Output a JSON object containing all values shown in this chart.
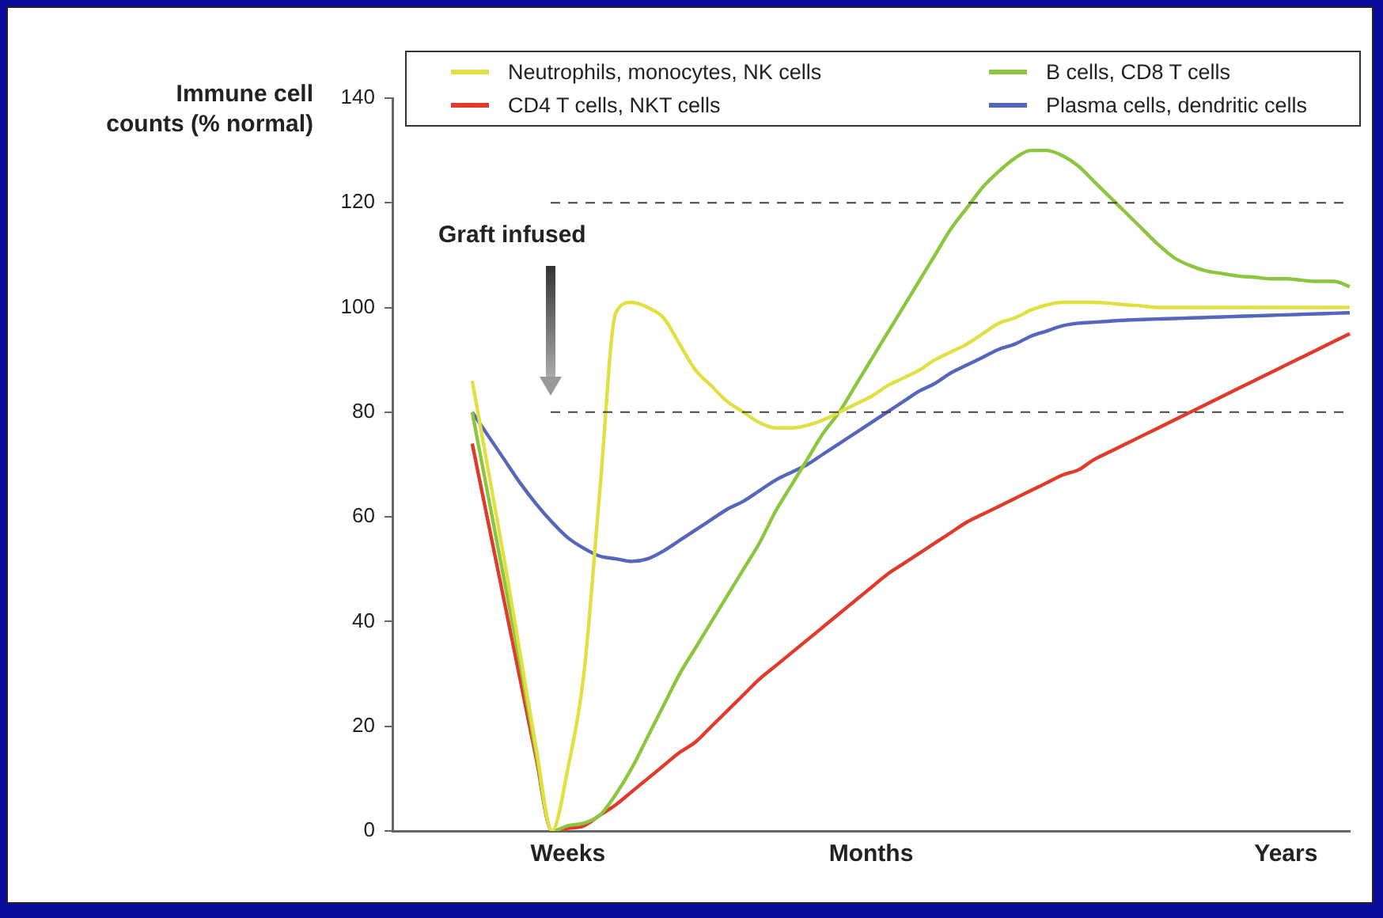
{
  "chart_data": {
    "type": "line",
    "ylabel": "Immune cell counts (% normal)",
    "categories": [
      null,
      null,
      null,
      null,
      null,
      null,
      null,
      null,
      null,
      null,
      null,
      "Weeks",
      null,
      null,
      null,
      null,
      null,
      null,
      null,
      null,
      null,
      null,
      null,
      null,
      null,
      null,
      null,
      null,
      null,
      null,
      "Months",
      null,
      null,
      null,
      null,
      null,
      null,
      null,
      null,
      null,
      null,
      null,
      null,
      null,
      null,
      null,
      null,
      null,
      null,
      null,
      null,
      null,
      null,
      null,
      null,
      null,
      "Years",
      null,
      null,
      null,
      null
    ],
    "ylim": [
      0,
      140
    ],
    "yticks": [
      0,
      20,
      40,
      60,
      80,
      100,
      120,
      140
    ],
    "grid": false,
    "legend": "top",
    "marker": "none",
    "line_style": "solid",
    "series": [
      {
        "name": "Neutrophils, monocytes, NK cells",
        "color": "#e0e040",
        "values": [
          null,
          null,
          null,
          null,
          null,
          86,
          69,
          52,
          34,
          16,
          0,
          12,
          30,
          65,
          99,
          101,
          100,
          98,
          93,
          88,
          85,
          82,
          80,
          78,
          77,
          77,
          77.5,
          78.5,
          80,
          81.5,
          83,
          85,
          86.5,
          88,
          90,
          91.5,
          93,
          95,
          97,
          98,
          99.5,
          100.5,
          101,
          101,
          101,
          100.8,
          100.5,
          100.3,
          100,
          100,
          100,
          100,
          100,
          100,
          100,
          100,
          100,
          100,
          100,
          100,
          100
        ]
      },
      {
        "name": "B cells, CD8  T cells",
        "color": "#8cc63f",
        "values": [
          null,
          null,
          null,
          null,
          null,
          80,
          64,
          48,
          32,
          15,
          0,
          1,
          1.5,
          3,
          7,
          12,
          18,
          24,
          30,
          35,
          40,
          45,
          50,
          55,
          61,
          66,
          71,
          76,
          80,
          85,
          90,
          95,
          100,
          105,
          110,
          115,
          119,
          123,
          126,
          128.5,
          130,
          130,
          129,
          127,
          124,
          121,
          118,
          115,
          112,
          109.5,
          108,
          107,
          106.5,
          106,
          105.8,
          105.5,
          105.5,
          105.2,
          105,
          105,
          104
        ]
      },
      {
        "name": "CD4  T cells, NKT cells",
        "color": "#e03a2a",
        "values": [
          null,
          null,
          null,
          null,
          null,
          74,
          59,
          44,
          29,
          14,
          0,
          0.5,
          1,
          3,
          5,
          7.5,
          10,
          12.5,
          15,
          17,
          20,
          23,
          26,
          29,
          31.5,
          34,
          36.5,
          39,
          41.5,
          44,
          46.5,
          49,
          51,
          53,
          55,
          57,
          59,
          60.5,
          62,
          63.5,
          65,
          66.5,
          68,
          69,
          71,
          72.5,
          74,
          75.5,
          77,
          78.5,
          80,
          81.5,
          83,
          84.5,
          86,
          87.5,
          89,
          90.5,
          92,
          93.5,
          95
        ]
      },
      {
        "name": "Plasma cells, dendritic cells",
        "color": "#5566bb",
        "values": [
          null,
          null,
          null,
          null,
          null,
          80,
          75.5,
          71,
          66.5,
          62.5,
          59,
          56,
          54,
          52.5,
          52,
          51.5,
          52,
          53.5,
          55.5,
          57.5,
          59.5,
          61.5,
          63,
          65,
          67,
          68.5,
          70,
          72,
          74,
          76,
          78,
          80,
          82,
          84,
          85.5,
          87.5,
          89,
          90.5,
          92,
          93,
          94.5,
          95.5,
          96.5,
          97,
          97.2,
          97.4,
          97.6,
          97.7,
          97.8,
          97.9,
          98,
          98.1,
          98.2,
          98.3,
          98.4,
          98.5,
          98.6,
          98.7,
          98.8,
          98.9,
          99
        ]
      }
    ],
    "ref_lines": [
      {
        "axis": "y",
        "value": 120,
        "color": "#444444",
        "line_style": "dashed"
      },
      {
        "axis": "y",
        "value": 80,
        "color": "#444444",
        "line_style": "dashed"
      }
    ],
    "annotations": [
      "Graft infused"
    ]
  }
}
